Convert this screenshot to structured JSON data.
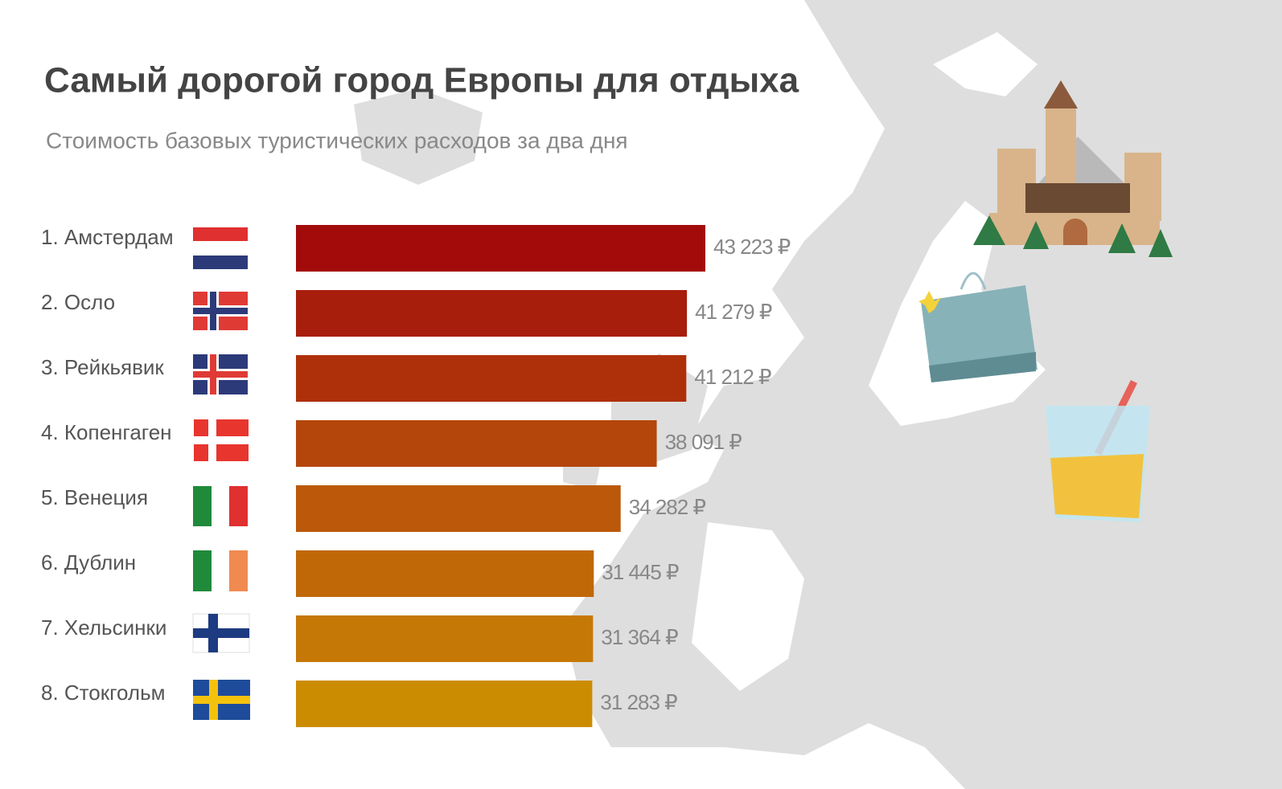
{
  "chart_data": {
    "type": "bar",
    "orientation": "horizontal",
    "title": "Самый дорогой город Европы для отдыха",
    "subtitle": "Стоимость базовых туристических расходов за два дня",
    "categories": [
      "1. Амстердам",
      "2. Осло",
      "3. Рейкьявик",
      "4. Копенгаген",
      "5. Венеция",
      "6. Дублин",
      "7. Хельсинки",
      "8. Стокгольм"
    ],
    "values": [
      43223,
      41279,
      41212,
      38091,
      34282,
      31445,
      31364,
      31283
    ],
    "value_labels": [
      "43 223 ₽",
      "41 279 ₽",
      "41 212 ₽",
      "38 091 ₽",
      "34 282 ₽",
      "31 445 ₽",
      "31 364 ₽",
      "31 283 ₽"
    ],
    "colors": [
      "#a30b0b",
      "#a81e0c",
      "#ae300b",
      "#b4460b",
      "#bb580a",
      "#c06808",
      "#c67806",
      "#cc8c02"
    ]
  }
}
